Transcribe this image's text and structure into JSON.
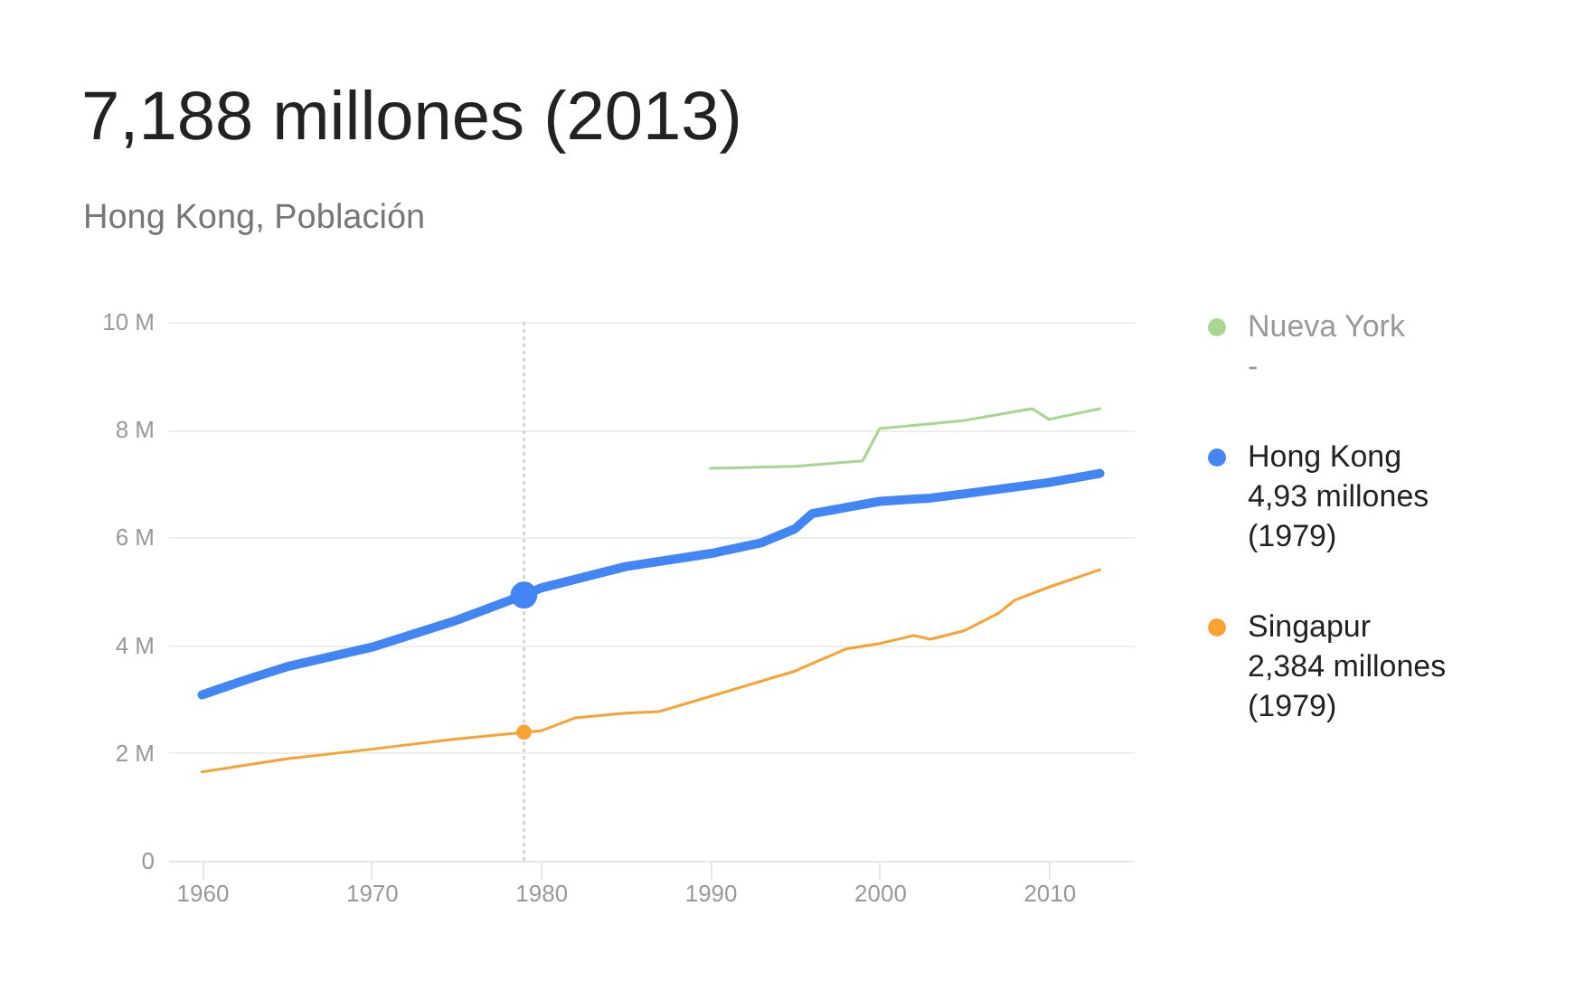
{
  "chart_data": {
    "type": "line",
    "title": "7,188 millones (2013)",
    "subtitle": "Hong Kong, Población",
    "series": [
      {
        "name": "Nueva York",
        "color": "#a8d58f",
        "x": [
          1990,
          1995,
          1999,
          2000,
          2005,
          2009,
          2010,
          2013
        ],
        "values": [
          7.28,
          7.32,
          7.42,
          8.02,
          8.17,
          8.39,
          8.19,
          8.39
        ]
      },
      {
        "name": "Hong Kong",
        "color": "#4285f4",
        "x": [
          1960,
          1963,
          1965,
          1970,
          1975,
          1979,
          1980,
          1985,
          1990,
          1993,
          1995,
          1996,
          2000,
          2003,
          2005,
          2010,
          2013
        ],
        "values": [
          3.08,
          3.4,
          3.6,
          3.96,
          4.46,
          4.93,
          5.06,
          5.46,
          5.7,
          5.9,
          6.16,
          6.44,
          6.67,
          6.73,
          6.81,
          7.02,
          7.188
        ]
      },
      {
        "name": "Singapur",
        "color": "#f9a133",
        "x": [
          1960,
          1965,
          1970,
          1975,
          1979,
          1980,
          1982,
          1985,
          1987,
          1990,
          1995,
          1998,
          2000,
          2002,
          2003,
          2005,
          2007,
          2008,
          2010,
          2013
        ],
        "values": [
          1.65,
          1.89,
          2.07,
          2.26,
          2.384,
          2.41,
          2.65,
          2.74,
          2.77,
          3.05,
          3.52,
          3.93,
          4.03,
          4.18,
          4.11,
          4.27,
          4.59,
          4.84,
          5.08,
          5.4
        ]
      },
      {
        "type": "scatter",
        "marker": "circle",
        "color": "#4285f4",
        "x": [
          1979
        ],
        "values": [
          4.93
        ]
      },
      {
        "type": "scatter",
        "marker": "circle",
        "color": "#f9a133",
        "x": [
          1979
        ],
        "values": [
          2.384
        ]
      }
    ],
    "annotations": [
      "-",
      "4,93 millones (1979)",
      "2,384 millones (1979)"
    ],
    "ref_lines": [
      {
        "axis": "x",
        "value": 1979,
        "color": "#d6d6d6",
        "line_style": "dotted"
      }
    ],
    "xlim": [
      1958,
      2015
    ],
    "xticks": [
      1960,
      1970,
      1980,
      1990,
      2000,
      2010
    ],
    "ylim": [
      0,
      10
    ],
    "yticks": [
      0,
      {
        "value": 2,
        "label": "2 M"
      },
      {
        "value": 4,
        "label": "4 M"
      },
      {
        "value": 6,
        "label": "6 M"
      },
      {
        "value": 8,
        "label": "8 M"
      },
      {
        "value": 10,
        "label": "10 M"
      }
    ],
    "grid": "y",
    "legend": "right",
    "line_style": "solid"
  }
}
